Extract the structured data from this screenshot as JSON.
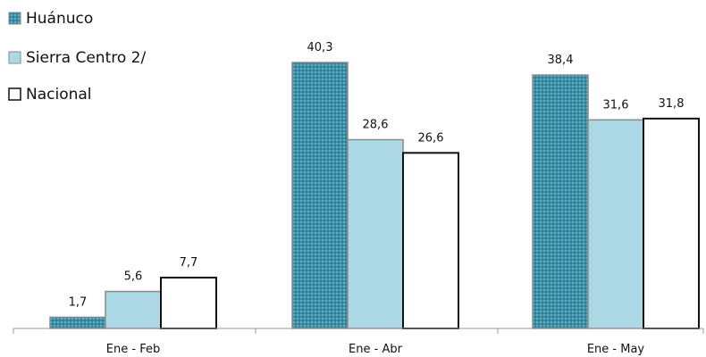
{
  "chart_data": {
    "type": "bar",
    "categories": [
      "Ene - Feb",
      "Ene - Abr",
      "Ene - May"
    ],
    "series": [
      {
        "name": "Huánuco",
        "values": [
          1.7,
          40.3,
          38.4
        ],
        "value_labels": [
          "1,7",
          "40,3",
          "38,4"
        ],
        "color": "#3a8fa6",
        "pattern": "dotted"
      },
      {
        "name": "Sierra Centro 2/",
        "values": [
          5.6,
          28.6,
          31.6
        ],
        "value_labels": [
          "5,6",
          "28,6",
          "31,6"
        ],
        "color": "#add8e6"
      },
      {
        "name": "Nacional",
        "values": [
          7.7,
          26.6,
          31.8
        ],
        "value_labels": [
          "7,7",
          "26,6",
          "31,8"
        ],
        "color": "#ffffff"
      }
    ],
    "ylim": [
      0,
      48
    ],
    "legend_position": "top-left",
    "grid": false,
    "data_labels": true
  }
}
